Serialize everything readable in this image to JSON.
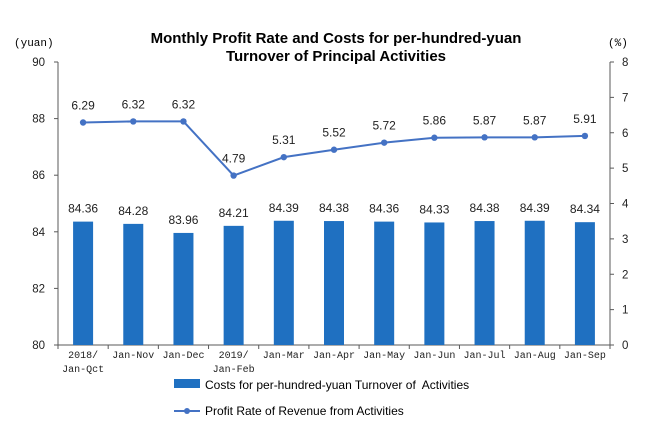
{
  "chart_data": {
    "type": "bar",
    "title_lines": [
      "Monthly Profit Rate and Costs for per-hundred-yuan",
      "Turnover of Principal Activities"
    ],
    "categories": [
      "2018/Jan-Qct",
      "Jan-Nov",
      "Jan-Dec",
      "2019/Jan-Feb",
      "Jan-Mar",
      "Jan-Apr",
      "Jan-May",
      "Jan-Jun",
      "Jan-Jul",
      "Jan-Aug",
      "Jan-Sep"
    ],
    "series": [
      {
        "name": "Costs for per-hundred-yuan Turnover of  Activities",
        "type": "bar",
        "axis": "left",
        "color": "#1f70c1",
        "values": [
          84.36,
          84.28,
          83.96,
          84.21,
          84.39,
          84.38,
          84.36,
          84.33,
          84.38,
          84.39,
          84.34
        ]
      },
      {
        "name": "Profit Rate of Revenue from Activities",
        "type": "line",
        "axis": "right",
        "color": "#4472c4",
        "values": [
          6.29,
          6.32,
          6.32,
          4.79,
          5.31,
          5.52,
          5.72,
          5.86,
          5.87,
          5.87,
          5.91
        ]
      }
    ],
    "y_left": {
      "label": "(yuan)",
      "ylim": [
        80,
        90
      ],
      "ticks": [
        80,
        82,
        84,
        86,
        88,
        90
      ]
    },
    "y_right": {
      "label": "(%)",
      "ylim": [
        0,
        8
      ],
      "ticks": [
        0,
        1,
        2,
        3,
        4,
        5,
        6,
        7,
        8
      ]
    },
    "grid": false,
    "legend": "bottom"
  }
}
